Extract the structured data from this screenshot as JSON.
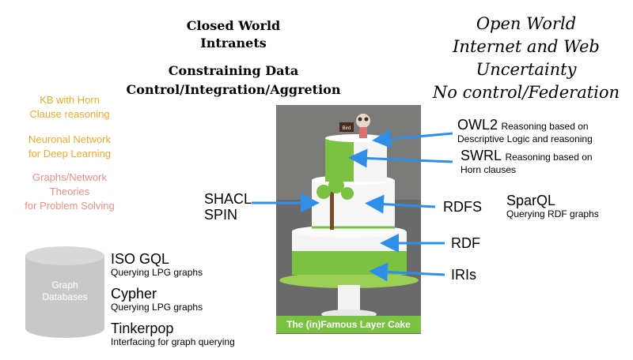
{
  "closed_world": {
    "line1": "Closed World",
    "line2": "Intranets",
    "line3": "Constraining Data",
    "line4": "Control/Integration/Aggretion"
  },
  "open_world": {
    "line1": "Open World",
    "line2": "Internet and Web",
    "line3": "Uncertainty",
    "line4": "No control/Federation"
  },
  "left_notes": {
    "kb_line1": "KB with Horn",
    "kb_line2": "Clause reasoning",
    "nn_line1": "Neuronal Network",
    "nn_line2": "for Deep Learning",
    "gt_line1": "Graphs/Network",
    "gt_line2": "Theories",
    "gt_line3": "for Problem Solving"
  },
  "cake": {
    "caption": "The (in)Famous Layer Cake",
    "topper_sign": "Bird"
  },
  "layers": {
    "owl2": "OWL2",
    "owl2_desc1": "Reasoning based on",
    "owl2_desc2": "Descriptive Logic and reasoning",
    "swrl": "SWRL",
    "swrl_desc1": "Reasoning based on",
    "swrl_desc2": "Horn clauses",
    "rdfs": "RDFS",
    "sparql": "SparQL",
    "sparql_desc": "Querying RDF graphs",
    "rdf": "RDF",
    "iris": "IRIs",
    "shacl": "SHACL",
    "spin": "SPIN"
  },
  "graph_db": {
    "label1": "Graph",
    "label2": "Databases",
    "iso_gql": "ISO GQL",
    "iso_gql_desc": "Querying LPG graphs",
    "cypher": "Cypher",
    "cypher_desc": "Querying LPG graphs",
    "tinkerpop": "Tinkerpop",
    "tinkerpop_desc": "Interfacing for graph querying"
  },
  "colors": {
    "arrow": "#2f8fe8",
    "cake_green": "#7bc142",
    "kb_orange": "#f0a92a",
    "graph_pink": "#f08c82",
    "cylinder": "#c8c8c8"
  }
}
